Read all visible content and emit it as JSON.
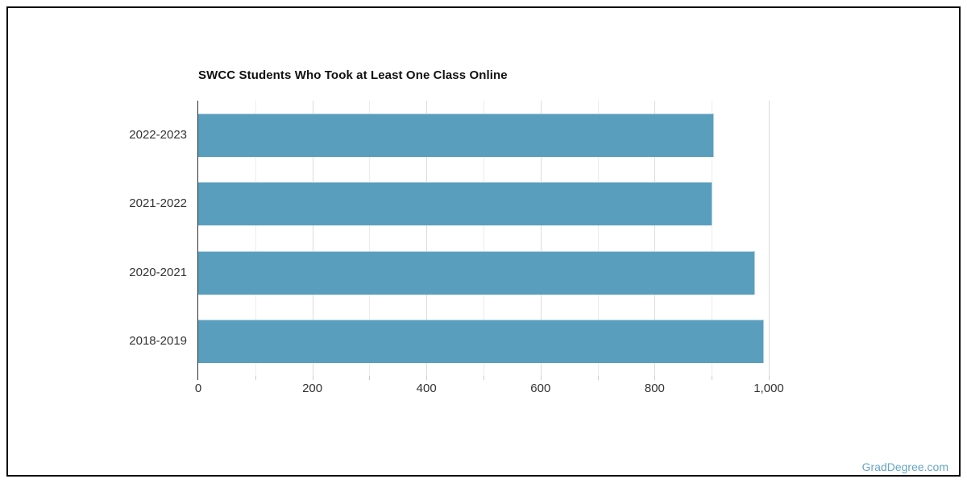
{
  "page": {
    "background": "#ffffff",
    "frame_border_color": "#000000",
    "watermark": "GradDegree.com",
    "watermark_color": "#67a5c3"
  },
  "chart_data": {
    "type": "bar",
    "orientation": "horizontal",
    "title": "SWCC Students Who Took at Least One Class Online",
    "categories": [
      "2022-2023",
      "2021-2022",
      "2020-2021",
      "2018-2019"
    ],
    "values": [
      904,
      901,
      976,
      992
    ],
    "xlabel": "",
    "ylabel": "",
    "xlim": [
      0,
      1000
    ],
    "x_major_ticks": [
      0,
      200,
      400,
      600,
      800,
      1000
    ],
    "x_tick_labels": [
      "0",
      "200",
      "400",
      "600",
      "800",
      "1,000"
    ],
    "x_minor_tick_interval": 100,
    "grid": true,
    "legend": false,
    "bar_color": "#5a9ebd",
    "grid_minor_color": "#ececec",
    "grid_major_color": "#dcdcdc",
    "axis_line_color": "#2f2f2f",
    "tick_color": "#cccccc",
    "label_color": "#333333",
    "title_color": "#111111"
  }
}
